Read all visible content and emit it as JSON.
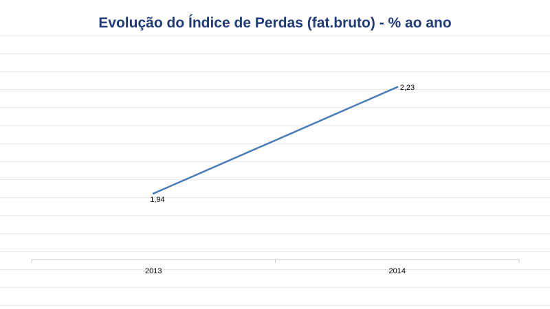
{
  "chart_data": {
    "type": "line",
    "title": "Evolução do Índice de Perdas (fat.bruto) - % ao ano",
    "xlabel": "",
    "ylabel": "",
    "categories": [
      "2013",
      "2014"
    ],
    "series": [
      {
        "values": [
          1.94,
          2.23
        ],
        "labels": [
          "1,94",
          "2,23"
        ],
        "color": "#4a7ab8"
      }
    ],
    "ylim": [
      1.76,
      2.37
    ],
    "grid": true,
    "legend": "none",
    "colors": {
      "title": "#1f3a7a",
      "gridline": "#e4e4e4",
      "axis": "#c8c8c8",
      "line": "#4a7ab8"
    }
  }
}
